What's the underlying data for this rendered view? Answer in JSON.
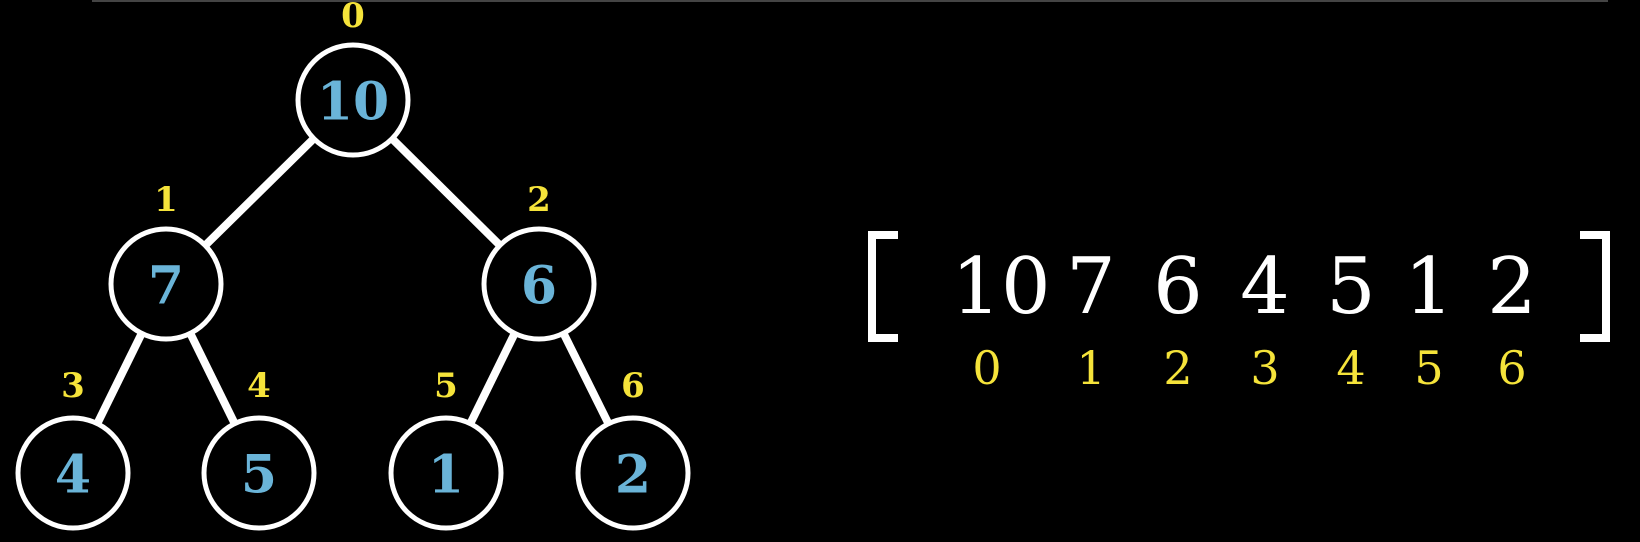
{
  "colors": {
    "background": "#000000",
    "node_value": "#6ab4d8",
    "index": "#f5e33a",
    "outline": "#ffffff",
    "array_value": "#ffffff"
  },
  "tree": {
    "nodes": [
      {
        "index": "0",
        "value": "10"
      },
      {
        "index": "1",
        "value": "7"
      },
      {
        "index": "2",
        "value": "6"
      },
      {
        "index": "3",
        "value": "4"
      },
      {
        "index": "4",
        "value": "5"
      },
      {
        "index": "5",
        "value": "1"
      },
      {
        "index": "6",
        "value": "2"
      }
    ]
  },
  "array": {
    "values": [
      "10",
      "7",
      "6",
      "4",
      "5",
      "1",
      "2"
    ],
    "indices": [
      "0",
      "1",
      "2",
      "3",
      "4",
      "5",
      "6"
    ]
  }
}
